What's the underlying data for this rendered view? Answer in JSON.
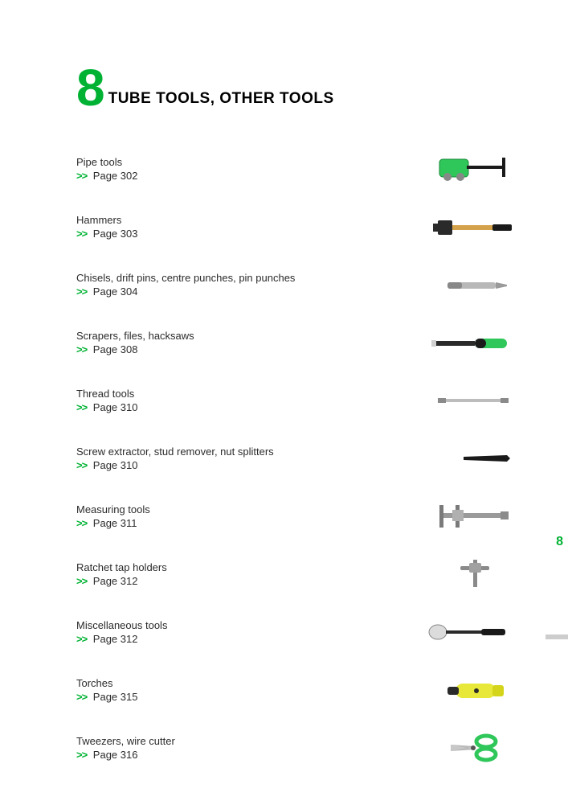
{
  "colors": {
    "accent": "#00b233",
    "text": "#2b2b2b",
    "background": "#ffffff",
    "tab_bar": "#cdcdcd"
  },
  "header": {
    "chapter_number": "8",
    "title": "TUBE TOOLS, OTHER TOOLS"
  },
  "arrow_glyph": ">>",
  "page_prefix": "Page",
  "toc": [
    {
      "title": "Pipe tools",
      "page": "302",
      "icon": "pipe-cutter"
    },
    {
      "title": "Hammers",
      "page": "303",
      "icon": "hammer"
    },
    {
      "title": "Chisels, drift pins, centre punches, pin punches",
      "page": "304",
      "icon": "chisel"
    },
    {
      "title": "Scrapers, files, hacksaws",
      "page": "308",
      "icon": "file"
    },
    {
      "title": "Thread tools",
      "page": "310",
      "icon": "thread-tool"
    },
    {
      "title": "Screw extractor, stud remover, nut splitters",
      "page": "310",
      "icon": "extractor"
    },
    {
      "title": "Measuring tools",
      "page": "311",
      "icon": "caliper"
    },
    {
      "title": "Ratchet tap holders",
      "page": "312",
      "icon": "tap-holder"
    },
    {
      "title": "Miscellaneous tools",
      "page": "312",
      "icon": "mirror"
    },
    {
      "title": "Torches",
      "page": "315",
      "icon": "torch"
    },
    {
      "title": "Tweezers, wire cutter",
      "page": "316",
      "icon": "scissors"
    }
  ],
  "side_tab": {
    "number": "8"
  },
  "typography": {
    "chapter_num_fontsize": 64,
    "title_fontsize": 19,
    "body_fontsize": 13
  }
}
